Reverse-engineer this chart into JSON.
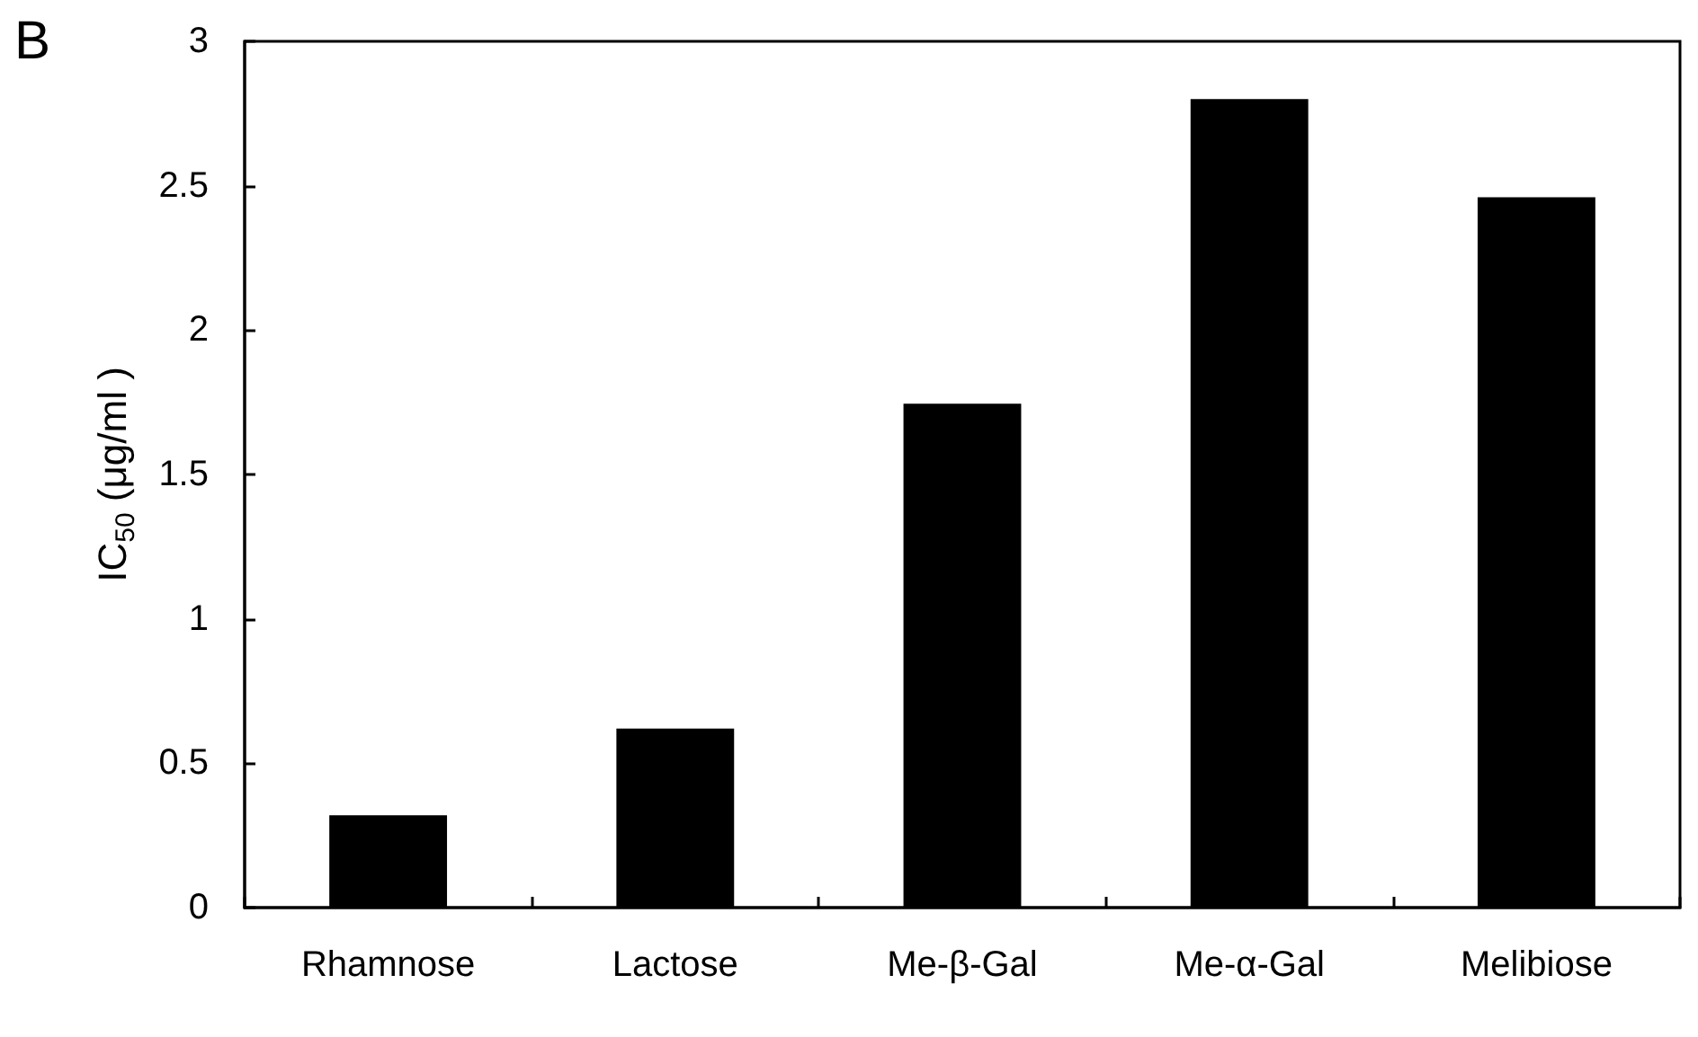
{
  "chart_data": {
    "type": "bar",
    "ylabel": "IC$_{50}$ (μg/ml )",
    "annotations": [
      "B"
    ],
    "categories": [
      "Rhamnose",
      "Lactose",
      "Me-β-Gal",
      "Me-α-Gal",
      "Melibiose"
    ],
    "values": [
      0.32,
      0.62,
      1.745,
      2.8,
      2.46
    ],
    "color": "#000000",
    "ylim": [
      0,
      3
    ],
    "yticks": [
      0,
      0.5,
      1,
      1.5,
      2,
      2.5,
      3
    ],
    "grid": false
  }
}
